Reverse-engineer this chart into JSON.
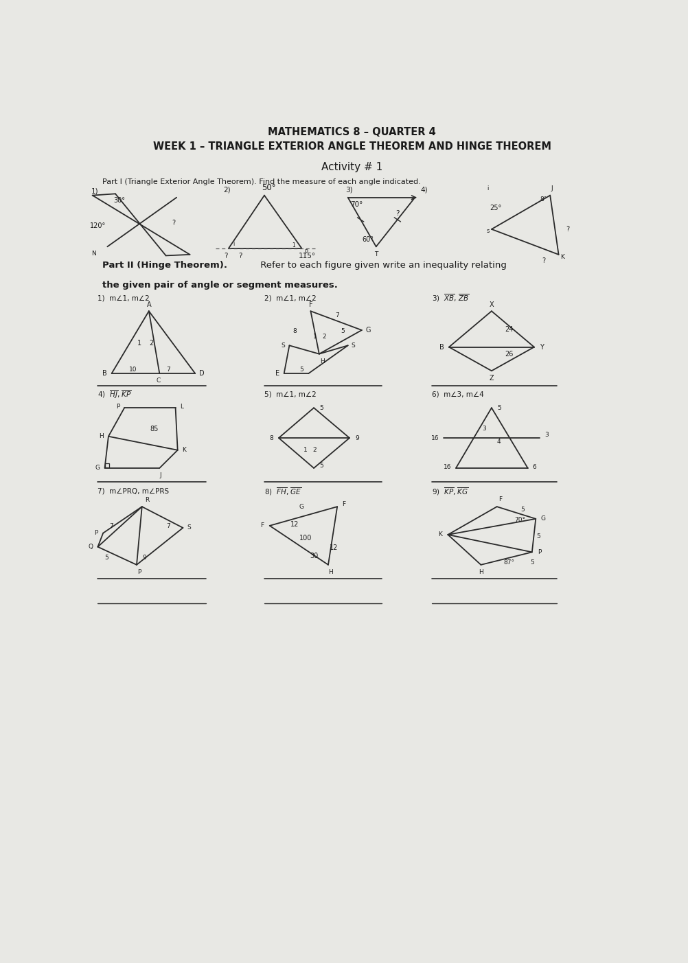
{
  "title_line1": "MATHEMATICS 8 – QUARTER 4",
  "title_line2": "WEEK 1 – TRIANGLE EXTERIOR ANGLE THEOREM AND HINGE THEOREM",
  "activity": "Activity # 1",
  "part1_label": "Part I (Triangle Exterior Angle Theorem). Find the measure of each angle indicated.",
  "part2_bold": "Part II (Hinge Theorem).",
  "part2_rest": " Refer to each figure given write an inequality relating",
  "part2_line2": "the given pair of angle or segment measures.",
  "bg": "#e8e8e4",
  "lc": "#2a2a2a",
  "tc": "#1a1a1a"
}
